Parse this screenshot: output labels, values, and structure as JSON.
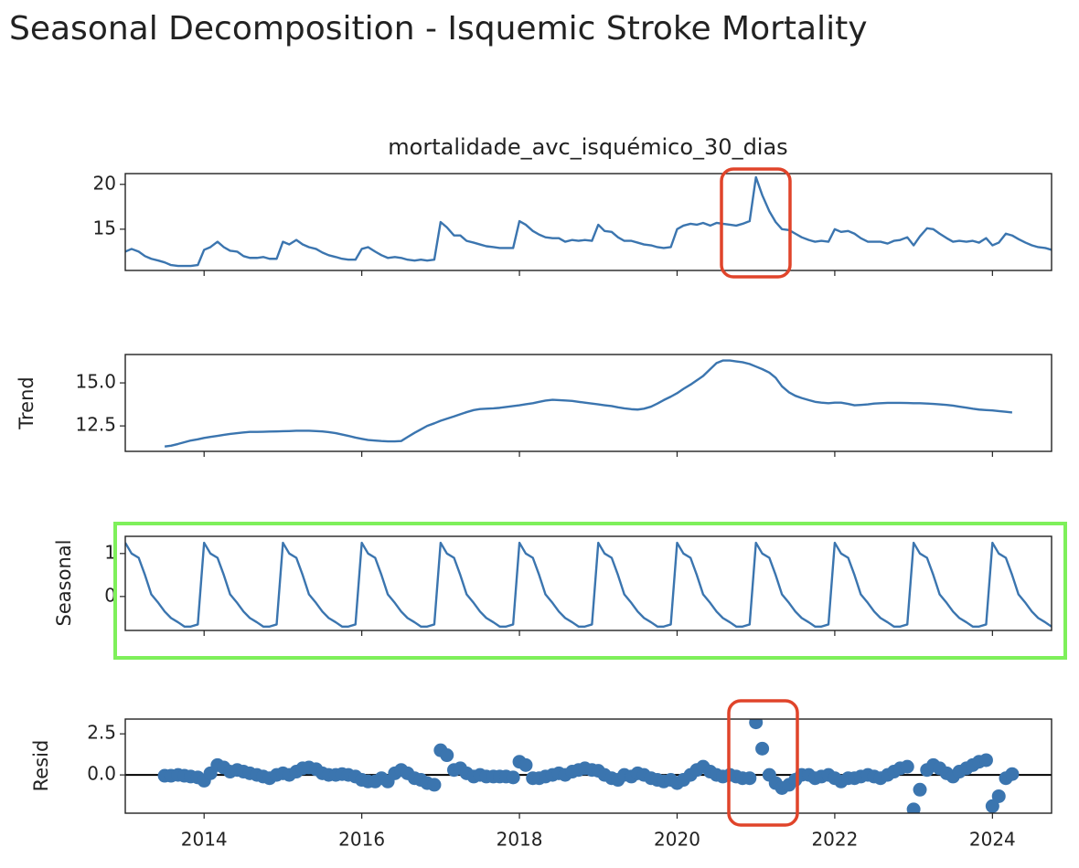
{
  "chart_data": [
    {
      "type": "line",
      "title": "Seasonal Decomposition - Isquemic Stroke Mortality",
      "subtitle": "mortalidade_avc_isquémico_30_dias",
      "color": "#3b75af",
      "x": [
        2013,
        2013.08,
        2013.17,
        2013.25,
        2013.33,
        2013.42,
        2013.5,
        2013.58,
        2013.67,
        2013.75,
        2013.83,
        2013.92,
        2014,
        2014.08,
        2014.17,
        2014.25,
        2014.33,
        2014.42,
        2014.5,
        2014.58,
        2014.67,
        2014.75,
        2014.83,
        2014.92,
        2015,
        2015.08,
        2015.17,
        2015.25,
        2015.33,
        2015.42,
        2015.5,
        2015.58,
        2015.67,
        2015.75,
        2015.83,
        2015.92,
        2016,
        2016.08,
        2016.17,
        2016.25,
        2016.33,
        2016.42,
        2016.5,
        2016.58,
        2016.67,
        2016.75,
        2016.83,
        2016.92,
        2017,
        2017.08,
        2017.17,
        2017.25,
        2017.33,
        2017.42,
        2017.5,
        2017.58,
        2017.67,
        2017.75,
        2017.83,
        2017.92,
        2018,
        2018.08,
        2018.17,
        2018.25,
        2018.33,
        2018.42,
        2018.5,
        2018.58,
        2018.67,
        2018.75,
        2018.83,
        2018.92,
        2019,
        2019.08,
        2019.17,
        2019.25,
        2019.33,
        2019.42,
        2019.5,
        2019.58,
        2019.67,
        2019.75,
        2019.83,
        2019.92,
        2020,
        2020.08,
        2020.17,
        2020.25,
        2020.33,
        2020.42,
        2020.5,
        2020.58,
        2020.67,
        2020.75,
        2020.83,
        2020.92,
        2021,
        2021.08,
        2021.17,
        2021.25,
        2021.33,
        2021.42,
        2021.5,
        2021.58,
        2021.67,
        2021.75,
        2021.83,
        2021.92,
        2022,
        2022.08,
        2022.17,
        2022.25,
        2022.33,
        2022.42,
        2022.5,
        2022.58,
        2022.67,
        2022.75,
        2022.83,
        2022.92,
        2023,
        2023.08,
        2023.17,
        2023.25,
        2023.33,
        2023.42,
        2023.5,
        2023.58,
        2023.67,
        2023.75,
        2023.83,
        2023.92,
        2024,
        2024.08,
        2024.17,
        2024.25,
        2024.33,
        2024.42,
        2024.5,
        2024.58,
        2024.67,
        2024.75
      ],
      "values": [
        12.5,
        12.8,
        12.5,
        12.0,
        11.7,
        11.5,
        11.3,
        11.0,
        10.9,
        10.9,
        10.9,
        11.0,
        12.7,
        13.0,
        13.6,
        13.0,
        12.6,
        12.5,
        12.0,
        11.8,
        11.8,
        11.9,
        11.7,
        11.7,
        13.6,
        13.3,
        13.8,
        13.3,
        13.0,
        12.8,
        12.4,
        12.1,
        11.9,
        11.7,
        11.6,
        11.6,
        12.8,
        13.0,
        12.5,
        12.1,
        11.8,
        11.9,
        11.8,
        11.6,
        11.5,
        11.6,
        11.5,
        11.6,
        15.8,
        15.2,
        14.3,
        14.3,
        13.7,
        13.5,
        13.3,
        13.1,
        13.0,
        12.9,
        12.9,
        12.9,
        15.9,
        15.5,
        14.8,
        14.4,
        14.1,
        14.0,
        14.0,
        13.6,
        13.8,
        13.7,
        13.8,
        13.7,
        15.5,
        14.8,
        14.7,
        14.1,
        13.7,
        13.7,
        13.5,
        13.3,
        13.2,
        13.0,
        12.9,
        13.0,
        15.0,
        15.4,
        15.6,
        15.5,
        15.7,
        15.4,
        15.7,
        15.6,
        15.5,
        15.4,
        15.6,
        15.9,
        20.8,
        18.8,
        17.0,
        15.8,
        15.0,
        14.9,
        14.5,
        14.1,
        13.8,
        13.6,
        13.7,
        13.6,
        15.0,
        14.7,
        14.8,
        14.5,
        14.0,
        13.6,
        13.6,
        13.6,
        13.4,
        13.7,
        13.8,
        14.1,
        13.2,
        14.2,
        15.1,
        15.0,
        14.5,
        14.0,
        13.6,
        13.7,
        13.6,
        13.7,
        13.5,
        14.0,
        13.2,
        13.5,
        14.5,
        14.3,
        13.9,
        13.5,
        13.2,
        13.0,
        12.9,
        12.7
      ],
      "ylim": [
        10.4,
        21.2
      ],
      "yticks": [
        15,
        20
      ]
    },
    {
      "type": "line",
      "ylabel": "Trend",
      "color": "#3b75af",
      "values": [
        null,
        null,
        null,
        null,
        null,
        null,
        11.3,
        11.35,
        11.45,
        11.55,
        11.65,
        11.72,
        11.8,
        11.86,
        11.92,
        11.98,
        12.03,
        12.08,
        12.12,
        12.15,
        12.15,
        12.16,
        12.17,
        12.18,
        12.19,
        12.2,
        12.22,
        12.22,
        12.22,
        12.2,
        12.18,
        12.14,
        12.08,
        12.0,
        11.92,
        11.82,
        11.75,
        11.68,
        11.65,
        11.62,
        11.6,
        11.6,
        11.62,
        11.85,
        12.1,
        12.3,
        12.5,
        12.65,
        12.8,
        12.92,
        13.05,
        13.18,
        13.3,
        13.42,
        13.48,
        13.5,
        13.52,
        13.55,
        13.6,
        13.65,
        13.7,
        13.76,
        13.82,
        13.9,
        13.97,
        14.02,
        14.0,
        13.98,
        13.95,
        13.9,
        13.85,
        13.8,
        13.75,
        13.7,
        13.65,
        13.58,
        13.52,
        13.47,
        13.45,
        13.5,
        13.62,
        13.8,
        14.0,
        14.2,
        14.4,
        14.65,
        14.9,
        15.15,
        15.4,
        15.8,
        16.15,
        16.3,
        16.3,
        16.25,
        16.2,
        16.1,
        15.95,
        15.8,
        15.6,
        15.3,
        14.8,
        14.45,
        14.25,
        14.12,
        14.0,
        13.9,
        13.85,
        13.82,
        13.85,
        13.85,
        13.78,
        13.7,
        13.72,
        13.75,
        13.8,
        13.82,
        13.84,
        13.84,
        13.84,
        13.83,
        13.82,
        13.82,
        13.8,
        13.78,
        13.75,
        13.72,
        13.68,
        13.62,
        13.56,
        13.5,
        13.45,
        13.42,
        13.4,
        13.36,
        13.32,
        13.28,
        null,
        null,
        null,
        null,
        null,
        null
      ],
      "ylim": [
        11.02,
        16.65
      ],
      "yticks": [
        12.5,
        {
          "value": 15,
          "label": "15.0"
        }
      ]
    },
    {
      "type": "line",
      "ylabel": "Seasonal",
      "color": "#3b75af",
      "values": [
        1.25,
        1.0,
        0.9,
        0.5,
        0.05,
        -0.15,
        -0.35,
        -0.5,
        -0.6,
        -0.7,
        -0.7,
        -0.65,
        1.25,
        1.0,
        0.9,
        0.5,
        0.05,
        -0.15,
        -0.35,
        -0.5,
        -0.6,
        -0.7,
        -0.7,
        -0.65,
        1.25,
        1.0,
        0.9,
        0.5,
        0.05,
        -0.15,
        -0.35,
        -0.5,
        -0.6,
        -0.7,
        -0.7,
        -0.65,
        1.25,
        1.0,
        0.9,
        0.5,
        0.05,
        -0.15,
        -0.35,
        -0.5,
        -0.6,
        -0.7,
        -0.7,
        -0.65,
        1.25,
        1.0,
        0.9,
        0.5,
        0.05,
        -0.15,
        -0.35,
        -0.5,
        -0.6,
        -0.7,
        -0.7,
        -0.65,
        1.25,
        1.0,
        0.9,
        0.5,
        0.05,
        -0.15,
        -0.35,
        -0.5,
        -0.6,
        -0.7,
        -0.7,
        -0.65,
        1.25,
        1.0,
        0.9,
        0.5,
        0.05,
        -0.15,
        -0.35,
        -0.5,
        -0.6,
        -0.7,
        -0.7,
        -0.65,
        1.25,
        1.0,
        0.9,
        0.5,
        0.05,
        -0.15,
        -0.35,
        -0.5,
        -0.6,
        -0.7,
        -0.7,
        -0.65,
        1.25,
        1.0,
        0.9,
        0.5,
        0.05,
        -0.15,
        -0.35,
        -0.5,
        -0.6,
        -0.7,
        -0.7,
        -0.65,
        1.25,
        1.0,
        0.9,
        0.5,
        0.05,
        -0.15,
        -0.35,
        -0.5,
        -0.6,
        -0.7,
        -0.7,
        -0.65,
        1.25,
        1.0,
        0.9,
        0.5,
        0.05,
        -0.15,
        -0.35,
        -0.5,
        -0.6,
        -0.7,
        -0.7,
        -0.65,
        1.25,
        1.0,
        0.9,
        0.5,
        0.05,
        -0.15,
        -0.35,
        -0.5,
        -0.6,
        -0.7
      ],
      "ylim": [
        -0.79,
        1.4
      ],
      "yticks": [
        0,
        1
      ]
    },
    {
      "type": "scatter",
      "ylabel": "Resid",
      "color": "#3b75af",
      "hline": 0,
      "values": [
        null,
        null,
        null,
        null,
        null,
        null,
        -0.05,
        -0.05,
        0.0,
        -0.05,
        -0.1,
        -0.15,
        -0.35,
        0.1,
        0.6,
        0.45,
        0.2,
        0.3,
        0.2,
        0.1,
        0.0,
        -0.1,
        -0.2,
        0.0,
        0.1,
        0.0,
        0.2,
        0.4,
        0.45,
        0.35,
        0.1,
        0.0,
        0.0,
        0.05,
        0.0,
        -0.1,
        -0.3,
        -0.4,
        -0.4,
        -0.2,
        -0.4,
        0.1,
        0.3,
        0.1,
        -0.2,
        -0.3,
        -0.5,
        -0.6,
        1.5,
        1.2,
        0.3,
        0.4,
        0.1,
        -0.1,
        0.0,
        -0.1,
        -0.1,
        -0.1,
        -0.1,
        -0.15,
        0.8,
        0.6,
        -0.2,
        -0.2,
        -0.1,
        0.0,
        0.1,
        0.0,
        0.2,
        0.3,
        0.4,
        0.3,
        0.25,
        0.0,
        -0.2,
        -0.3,
        0.0,
        -0.1,
        0.1,
        0.0,
        -0.2,
        -0.3,
        -0.4,
        -0.3,
        -0.5,
        -0.3,
        0.0,
        0.3,
        0.5,
        0.2,
        0.0,
        -0.1,
        0.0,
        -0.1,
        -0.2,
        -0.2,
        3.2,
        1.6,
        0.0,
        -0.5,
        -0.8,
        -0.6,
        -0.3,
        0.0,
        0.0,
        -0.2,
        -0.1,
        0.0,
        -0.2,
        -0.4,
        -0.2,
        -0.2,
        -0.1,
        0.0,
        -0.1,
        -0.2,
        0.0,
        0.2,
        0.4,
        0.5,
        -2.1,
        -0.9,
        0.3,
        0.6,
        0.4,
        0.1,
        -0.1,
        0.2,
        0.4,
        0.6,
        0.8,
        0.9,
        -1.9,
        -1.3,
        -0.2,
        0.05,
        null,
        null,
        null,
        null,
        null,
        null
      ],
      "ylim": [
        -2.33,
        3.4
      ],
      "yticks": [
        {
          "value": 0,
          "label": "0.0"
        },
        2.5
      ],
      "xlim": [
        2013,
        2024.75
      ],
      "xticks": [
        2014,
        2016,
        2018,
        2020,
        2022,
        2024
      ]
    }
  ]
}
